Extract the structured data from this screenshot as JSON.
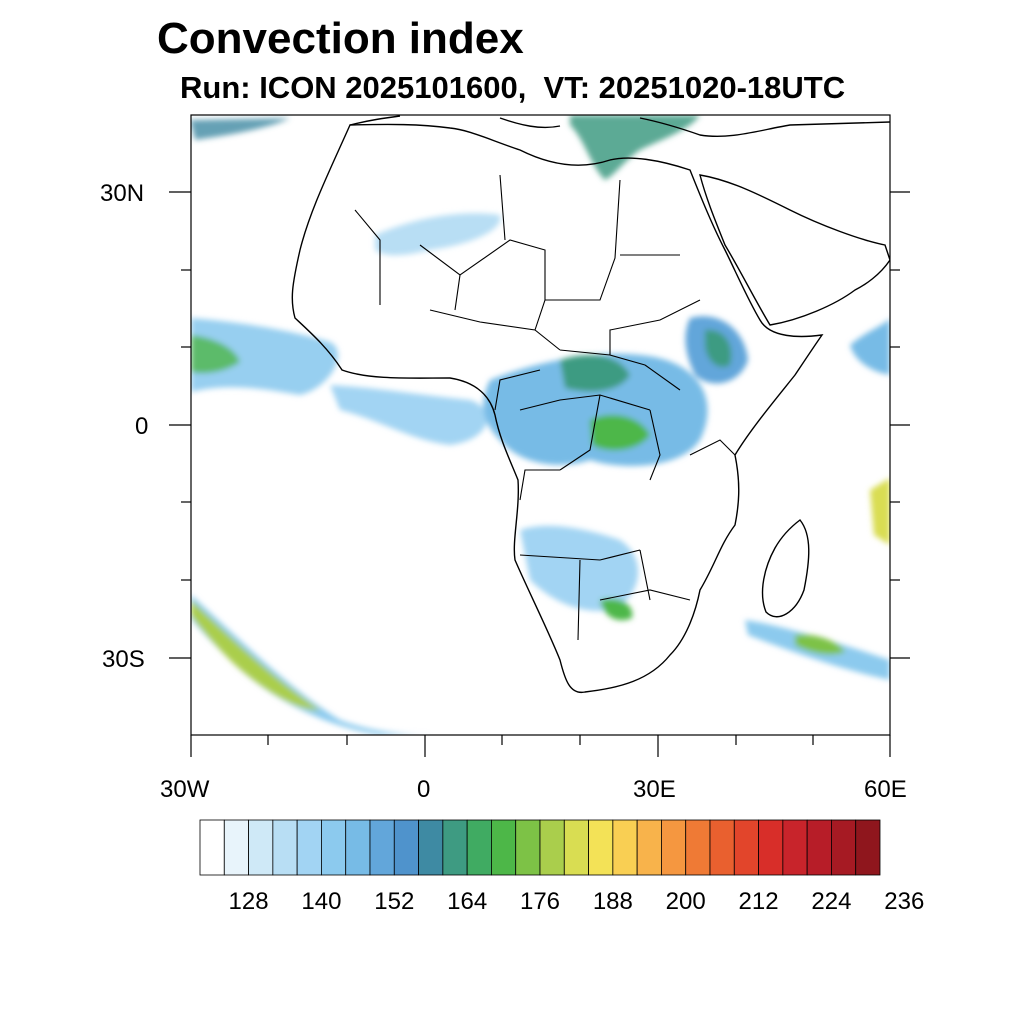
{
  "title": "Convection index",
  "subtitle": "Run: ICON 2025101600,  VT: 20251020-18UTC",
  "map": {
    "region": "Africa",
    "lon_range": [
      -30,
      60
    ],
    "lat_range": [
      -40,
      40
    ],
    "y_ticks": [
      "30N",
      "0",
      "30S"
    ],
    "x_ticks": [
      "30W",
      "0",
      "30E",
      "60E"
    ]
  },
  "colorbar": {
    "labels": [
      "128",
      "140",
      "152",
      "164",
      "176",
      "188",
      "200",
      "212",
      "224",
      "236"
    ],
    "colors": [
      "#ffffff",
      "#e8f4fb",
      "#cfe9f7",
      "#b8def4",
      "#a2d4f3",
      "#8ccaee",
      "#77bbe6",
      "#62a6da",
      "#4f93cc",
      "#3e8aa3",
      "#3e9b82",
      "#40ab62",
      "#4db748",
      "#7dc246",
      "#aace4c",
      "#d9dd52",
      "#f3e257",
      "#f9cf53",
      "#f8b34b",
      "#f59740",
      "#ef7a35",
      "#e9602f",
      "#e2452b",
      "#d82e29",
      "#c8242b",
      "#b71d28",
      "#a61a23",
      "#8f161d"
    ]
  }
}
